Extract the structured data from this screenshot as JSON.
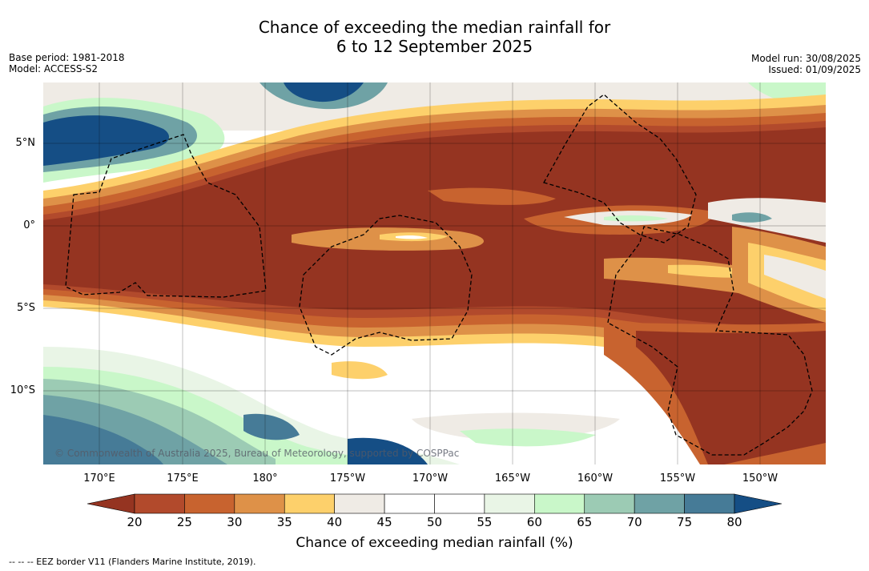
{
  "title_line1": "Chance of exceeding the median rainfall for",
  "title_line2": "6 to 12 September 2025",
  "meta_left": {
    "base_period": "Base period: 1981-2018",
    "model": "Model: ACCESS-S2"
  },
  "meta_right": {
    "model_run": "Model run: 30/08/2025",
    "issued": "Issued: 01/09/2025"
  },
  "lat_labels": [
    "5°N",
    "0°",
    "5°S",
    "10°S"
  ],
  "lon_labels": [
    "170°E",
    "175°E",
    "180°",
    "175°W",
    "170°W",
    "165°W",
    "160°W",
    "155°W",
    "150°W"
  ],
  "copyright": "© Commonwealth of Australia 2025, Bureau of Meteorology, supported by COSPPac",
  "colorbar": {
    "ticks": [
      "20",
      "25",
      "30",
      "35",
      "40",
      "45",
      "50",
      "55",
      "60",
      "65",
      "70",
      "75",
      "80"
    ],
    "colors": [
      "#b24a2c",
      "#c8632f",
      "#de9148",
      "#fdd06b",
      "#efebe5",
      "#ffffff",
      "#ffffff",
      "#e9f5e6",
      "#c9f7c9",
      "#9ccbb4",
      "#6fa2a5",
      "#467b97"
    ],
    "under_color": "#953421",
    "over_color": "#154e85",
    "label": "Chance of exceeding median rainfall (%)"
  },
  "footer": "--  --  -- EEZ border V11 (Flanders Marine Institute, 2019)."
}
